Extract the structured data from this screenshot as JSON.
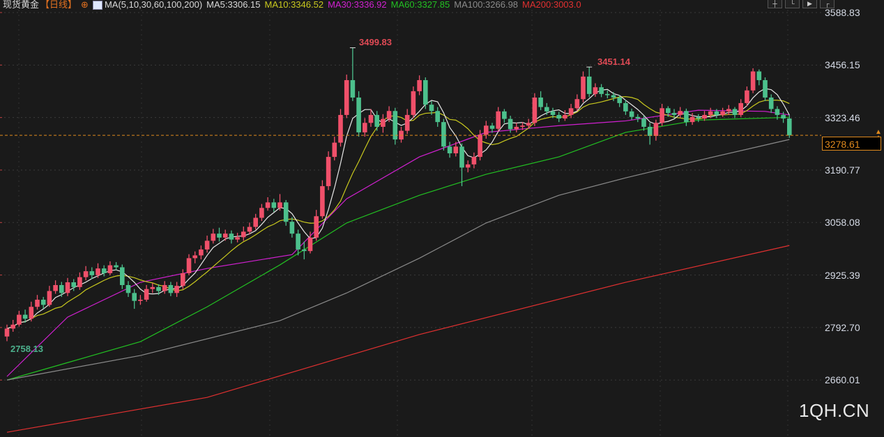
{
  "header": {
    "instrument": "现货黄金",
    "period": "【日线】",
    "ma_label": "MA(5,10,30,60,100,200)",
    "ma_values": [
      {
        "text": "MA5:3306.15",
        "color": "#e6e6e6"
      },
      {
        "text": "MA10:3346.52",
        "color": "#c8c81e"
      },
      {
        "text": "MA30:3336.92",
        "color": "#d020d0"
      },
      {
        "text": "MA60:3327.85",
        "color": "#22c022"
      },
      {
        "text": "MA100:3266.98",
        "color": "#8a8a8a"
      },
      {
        "text": "MA200:3003.0",
        "color": "#e03030"
      }
    ]
  },
  "toolbar": [
    "crosshair-icon",
    "chart-style-icon",
    "indicator-icon",
    "export-icon"
  ],
  "watermark": "1QH.CN",
  "colors": {
    "background": "#1a1a1a",
    "up": "#f0506a",
    "down": "#4cc08c",
    "current_price": "#e08a1e"
  },
  "chart_data": {
    "type": "candlestick",
    "title": "现货黄金 【日线】",
    "y_ticks": [
      "3588.83",
      "3456.15",
      "3323.46",
      "3190.77",
      "3058.08",
      "2925.39",
      "2792.70",
      "2660.01"
    ],
    "y_tick_values": [
      3588.83,
      3456.15,
      3323.46,
      3190.77,
      3058.08,
      2925.39,
      2792.7,
      2660.01
    ],
    "ylim": [
      2515,
      3620
    ],
    "grid": true,
    "current_price": "3278.61",
    "annotations": {
      "high_label": "3499.83",
      "second_high_label": "3451.14",
      "low_label": "2758.13"
    },
    "ohlc": [
      [
        2770,
        2800,
        2758.13,
        2790
      ],
      [
        2790,
        2812,
        2782,
        2800
      ],
      [
        2800,
        2835,
        2795,
        2825
      ],
      [
        2825,
        2838,
        2805,
        2815
      ],
      [
        2815,
        2858,
        2808,
        2845
      ],
      [
        2845,
        2875,
        2838,
        2863
      ],
      [
        2863,
        2870,
        2840,
        2850
      ],
      [
        2850,
        2898,
        2845,
        2885
      ],
      [
        2885,
        2912,
        2878,
        2900
      ],
      [
        2900,
        2908,
        2870,
        2880
      ],
      [
        2880,
        2918,
        2872,
        2907
      ],
      [
        2907,
        2915,
        2885,
        2895
      ],
      [
        2895,
        2932,
        2888,
        2920
      ],
      [
        2920,
        2948,
        2912,
        2935
      ],
      [
        2935,
        2945,
        2915,
        2925
      ],
      [
        2925,
        2955,
        2918,
        2942
      ],
      [
        2942,
        2950,
        2922,
        2930
      ],
      [
        2930,
        2960,
        2925,
        2950
      ],
      [
        2950,
        2958,
        2938,
        2945
      ],
      [
        2945,
        2952,
        2890,
        2900
      ],
      [
        2900,
        2910,
        2870,
        2880
      ],
      [
        2880,
        2890,
        2840,
        2860
      ],
      [
        2860,
        2875,
        2850,
        2863
      ],
      [
        2863,
        2900,
        2858,
        2890
      ],
      [
        2890,
        2905,
        2880,
        2895
      ],
      [
        2895,
        2902,
        2875,
        2885
      ],
      [
        2885,
        2910,
        2878,
        2900
      ],
      [
        2900,
        2908,
        2872,
        2880
      ],
      [
        2880,
        2908,
        2870,
        2898
      ],
      [
        2898,
        2940,
        2890,
        2930
      ],
      [
        2930,
        2978,
        2925,
        2968
      ],
      [
        2968,
        2985,
        2955,
        2975
      ],
      [
        2975,
        3000,
        2965,
        2990
      ],
      [
        2990,
        3025,
        2982,
        3012
      ],
      [
        3012,
        3042,
        3005,
        3030
      ],
      [
        3030,
        3045,
        3010,
        3020
      ],
      [
        3020,
        3040,
        3012,
        3030
      ],
      [
        3030,
        3038,
        3005,
        3015
      ],
      [
        3015,
        3032,
        3008,
        3021
      ],
      [
        3021,
        3048,
        3012,
        3035
      ],
      [
        3035,
        3058,
        3028,
        3047
      ],
      [
        3047,
        3080,
        3040,
        3070
      ],
      [
        3070,
        3105,
        3062,
        3095
      ],
      [
        3095,
        3122,
        3088,
        3109
      ],
      [
        3109,
        3118,
        3085,
        3095
      ],
      [
        3095,
        3130,
        3088,
        3109
      ],
      [
        3109,
        3115,
        3050,
        3060
      ],
      [
        3060,
        3072,
        3020,
        3030
      ],
      [
        3030,
        3040,
        2975,
        2990
      ],
      [
        2990,
        3010,
        2965,
        2986
      ],
      [
        2986,
        3035,
        2980,
        3020
      ],
      [
        3020,
        3090,
        3012,
        3074
      ],
      [
        3074,
        3165,
        3068,
        3150
      ],
      [
        3150,
        3238,
        3140,
        3224
      ],
      [
        3224,
        3275,
        3215,
        3260
      ],
      [
        3260,
        3345,
        3250,
        3330
      ],
      [
        3330,
        3432,
        3322,
        3418
      ],
      [
        3418,
        3499.83,
        3365,
        3374
      ],
      [
        3374,
        3390,
        3275,
        3286
      ],
      [
        3286,
        3322,
        3275,
        3310
      ],
      [
        3310,
        3345,
        3300,
        3330
      ],
      [
        3330,
        3340,
        3290,
        3300
      ],
      [
        3300,
        3332,
        3285,
        3320
      ],
      [
        3320,
        3352,
        3312,
        3340
      ],
      [
        3340,
        3348,
        3255,
        3268
      ],
      [
        3268,
        3300,
        3260,
        3290
      ],
      [
        3290,
        3345,
        3282,
        3330
      ],
      [
        3330,
        3402,
        3322,
        3390
      ],
      [
        3390,
        3430,
        3380,
        3418
      ],
      [
        3418,
        3425,
        3345,
        3356
      ],
      [
        3356,
        3365,
        3330,
        3340
      ],
      [
        3340,
        3350,
        3300,
        3312
      ],
      [
        3312,
        3320,
        3240,
        3250
      ],
      [
        3250,
        3262,
        3222,
        3233
      ],
      [
        3233,
        3262,
        3225,
        3250
      ],
      [
        3250,
        3258,
        3150,
        3197
      ],
      [
        3197,
        3215,
        3185,
        3205
      ],
      [
        3205,
        3235,
        3195,
        3224
      ],
      [
        3224,
        3292,
        3215,
        3280
      ],
      [
        3280,
        3315,
        3270,
        3303
      ],
      [
        3303,
        3310,
        3285,
        3295
      ],
      [
        3295,
        3350,
        3288,
        3339
      ],
      [
        3339,
        3345,
        3310,
        3320
      ],
      [
        3320,
        3328,
        3285,
        3294
      ],
      [
        3294,
        3310,
        3286,
        3300
      ],
      [
        3300,
        3312,
        3292,
        3303
      ],
      [
        3303,
        3320,
        3296,
        3310
      ],
      [
        3310,
        3385,
        3302,
        3374
      ],
      [
        3374,
        3390,
        3342,
        3350
      ],
      [
        3350,
        3360,
        3330,
        3339
      ],
      [
        3339,
        3348,
        3322,
        3330
      ],
      [
        3330,
        3338,
        3312,
        3321
      ],
      [
        3321,
        3342,
        3315,
        3330
      ],
      [
        3330,
        3358,
        3322,
        3347
      ],
      [
        3347,
        3382,
        3340,
        3370
      ],
      [
        3370,
        3440,
        3362,
        3427
      ],
      [
        3427,
        3451.14,
        3375,
        3383
      ],
      [
        3383,
        3410,
        3376,
        3400
      ],
      [
        3400,
        3408,
        3375,
        3383
      ],
      [
        3383,
        3392,
        3372,
        3380
      ],
      [
        3380,
        3388,
        3365,
        3374
      ],
      [
        3374,
        3380,
        3350,
        3360
      ],
      [
        3360,
        3368,
        3330,
        3339
      ],
      [
        3339,
        3346,
        3318,
        3325
      ],
      [
        3325,
        3332,
        3312,
        3321
      ],
      [
        3321,
        3328,
        3290,
        3300
      ],
      [
        3300,
        3310,
        3255,
        3277
      ],
      [
        3277,
        3318,
        3265,
        3310
      ],
      [
        3310,
        3358,
        3302,
        3347
      ],
      [
        3347,
        3352,
        3325,
        3335
      ],
      [
        3335,
        3345,
        3322,
        3330
      ],
      [
        3330,
        3350,
        3322,
        3340
      ],
      [
        3340,
        3346,
        3302,
        3312
      ],
      [
        3312,
        3335,
        3305,
        3325
      ],
      [
        3325,
        3332,
        3312,
        3321
      ],
      [
        3321,
        3340,
        3315,
        3330
      ],
      [
        3330,
        3348,
        3322,
        3339
      ],
      [
        3339,
        3345,
        3322,
        3330
      ],
      [
        3330,
        3348,
        3325,
        3339
      ],
      [
        3339,
        3355,
        3330,
        3345
      ],
      [
        3345,
        3350,
        3322,
        3330
      ],
      [
        3330,
        3370,
        3325,
        3360
      ],
      [
        3360,
        3402,
        3352,
        3392
      ],
      [
        3392,
        3448,
        3385,
        3440
      ],
      [
        3440,
        3445,
        3405,
        3418
      ],
      [
        3418,
        3425,
        3365,
        3374
      ],
      [
        3374,
        3382,
        3335,
        3345
      ],
      [
        3345,
        3352,
        3318,
        3330
      ],
      [
        3330,
        3338,
        3310,
        3321
      ],
      [
        3321,
        3330,
        3272,
        3278.61
      ]
    ],
    "series": [
      {
        "name": "MA30",
        "color": "#d020d0",
        "points": [
          [
            0,
            2669
          ],
          [
            10,
            2819
          ],
          [
            22,
            2907
          ],
          [
            33,
            2942
          ],
          [
            47,
            2977
          ],
          [
            56,
            3118
          ],
          [
            68,
            3224
          ],
          [
            79,
            3286
          ],
          [
            91,
            3303
          ],
          [
            102,
            3315
          ],
          [
            114,
            3342
          ],
          [
            125,
            3339
          ],
          [
            129,
            3330
          ]
        ]
      },
      {
        "name": "MA60",
        "color": "#22c022",
        "points": [
          [
            0,
            2660
          ],
          [
            10,
            2704
          ],
          [
            22,
            2757
          ],
          [
            33,
            2845
          ],
          [
            45,
            2951
          ],
          [
            56,
            3057
          ],
          [
            68,
            3127
          ],
          [
            79,
            3180
          ],
          [
            91,
            3224
          ],
          [
            102,
            3286
          ],
          [
            114,
            3317
          ],
          [
            129,
            3324
          ]
        ]
      },
      {
        "name": "MA100",
        "color": "#8a8a8a",
        "points": [
          [
            0,
            2660
          ],
          [
            22,
            2722
          ],
          [
            45,
            2810
          ],
          [
            56,
            2880
          ],
          [
            68,
            2968
          ],
          [
            79,
            3057
          ],
          [
            91,
            3127
          ],
          [
            102,
            3171
          ],
          [
            114,
            3215
          ],
          [
            129,
            3268
          ]
        ]
      },
      {
        "name": "MA200",
        "color": "#e03030",
        "points": [
          [
            0,
            2528
          ],
          [
            33,
            2616
          ],
          [
            68,
            2775
          ],
          [
            102,
            2907
          ],
          [
            129,
            3000
          ]
        ]
      }
    ]
  }
}
